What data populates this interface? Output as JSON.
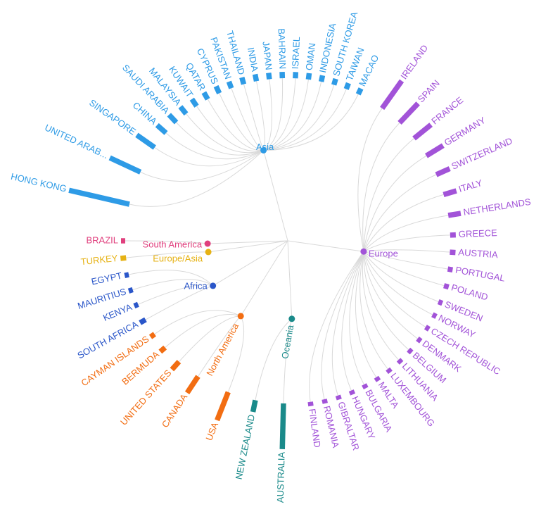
{
  "chart_data": {
    "type": "radial-dendrogram-bar",
    "title": "",
    "regions": [
      {
        "name": "Asia",
        "color": "#2e9be6"
      },
      {
        "name": "Europe",
        "color": "#a253d8"
      },
      {
        "name": "Oceania",
        "color": "#1a8a8a"
      },
      {
        "name": "North America",
        "color": "#f26d12"
      },
      {
        "name": "Africa",
        "color": "#2a56c9"
      },
      {
        "name": "Europe/Asia",
        "color": "#e6b214"
      },
      {
        "name": "South America",
        "color": "#e0407e"
      }
    ],
    "countries": [
      {
        "name": "TAIWAN",
        "region": "Asia",
        "value": 6
      },
      {
        "name": "SOUTH KOREA",
        "region": "Asia",
        "value": 6
      },
      {
        "name": "INDONESIA",
        "region": "Asia",
        "value": 6
      },
      {
        "name": "OMAN",
        "region": "Asia",
        "value": 6
      },
      {
        "name": "ISRAEL",
        "region": "Asia",
        "value": 6
      },
      {
        "name": "BAHRAIN",
        "region": "Asia",
        "value": 6
      },
      {
        "name": "JAPAN",
        "region": "Asia",
        "value": 6
      },
      {
        "name": "INDIA",
        "region": "Asia",
        "value": 7
      },
      {
        "name": "THAILAND",
        "region": "Asia",
        "value": 7
      },
      {
        "name": "PAKISTAN",
        "region": "Asia",
        "value": 7
      },
      {
        "name": "CYPRUS",
        "region": "Asia",
        "value": 8
      },
      {
        "name": "QATAR",
        "region": "Asia",
        "value": 8
      },
      {
        "name": "KUWAIT",
        "region": "Asia",
        "value": 9
      },
      {
        "name": "MALAYSIA",
        "region": "Asia",
        "value": 10
      },
      {
        "name": "SAUDI ARABIA",
        "region": "Asia",
        "value": 12
      },
      {
        "name": "CHINA",
        "region": "Asia",
        "value": 14
      },
      {
        "name": "SINGAPORE",
        "region": "Asia",
        "value": 28
      },
      {
        "name": "UNITED ARAB...",
        "region": "Asia",
        "value": 45
      },
      {
        "name": "HONG KONG",
        "region": "Asia",
        "value": 85
      },
      {
        "name": "BRAZIL",
        "region": "South America",
        "value": 3
      },
      {
        "name": "TURKEY",
        "region": "Europe/Asia",
        "value": 5
      },
      {
        "name": "EGYPT",
        "region": "Africa",
        "value": 3
      },
      {
        "name": "MAURITIUS",
        "region": "Africa",
        "value": 3
      },
      {
        "name": "KENYA",
        "region": "Africa",
        "value": 3
      },
      {
        "name": "SOUTH AFRICA",
        "region": "Africa",
        "value": 6
      },
      {
        "name": "CAYMAN ISLANDS",
        "region": "North America",
        "value": 4
      },
      {
        "name": "BERMUDA",
        "region": "North America",
        "value": 6
      },
      {
        "name": "UNITED STATES",
        "region": "North America",
        "value": 12
      },
      {
        "name": "CANADA",
        "region": "North America",
        "value": 25
      },
      {
        "name": "USA",
        "region": "North America",
        "value": 40
      },
      {
        "name": "NEW ZEALAND",
        "region": "Oceania",
        "value": 14
      },
      {
        "name": "AUSTRALIA",
        "region": "Oceania",
        "value": 62
      },
      {
        "name": "FINLAND",
        "region": "Europe",
        "value": 3
      },
      {
        "name": "ROMANIA",
        "region": "Europe",
        "value": 3
      },
      {
        "name": "GIBRALTAR",
        "region": "Europe",
        "value": 3
      },
      {
        "name": "HUNGARY",
        "region": "Europe",
        "value": 3
      },
      {
        "name": "BULGARIA",
        "region": "Europe",
        "value": 3
      },
      {
        "name": "MALTA",
        "region": "Europe",
        "value": 3
      },
      {
        "name": "LUXEMBOURG",
        "region": "Europe",
        "value": 3
      },
      {
        "name": "LITHUANIA",
        "region": "Europe",
        "value": 3
      },
      {
        "name": "BELGIUM",
        "region": "Europe",
        "value": 3
      },
      {
        "name": "DENMARK",
        "region": "Europe",
        "value": 3
      },
      {
        "name": "CZECH REPUBLIC",
        "region": "Europe",
        "value": 3
      },
      {
        "name": "NORWAY",
        "region": "Europe",
        "value": 3
      },
      {
        "name": "SWEDEN",
        "region": "Europe",
        "value": 3
      },
      {
        "name": "POLAND",
        "region": "Europe",
        "value": 4
      },
      {
        "name": "PORTUGAL",
        "region": "Europe",
        "value": 4
      },
      {
        "name": "AUSTRIA",
        "region": "Europe",
        "value": 5
      },
      {
        "name": "GREECE",
        "region": "Europe",
        "value": 5
      },
      {
        "name": "NETHERLANDS",
        "region": "Europe",
        "value": 15
      },
      {
        "name": "ITALY",
        "region": "Europe",
        "value": 16
      },
      {
        "name": "SWITZERLAND",
        "region": "Europe",
        "value": 18
      },
      {
        "name": "GERMANY",
        "region": "Europe",
        "value": 25
      },
      {
        "name": "FRANCE",
        "region": "Europe",
        "value": 28
      },
      {
        "name": "SPAIN",
        "region": "Europe",
        "value": 35
      },
      {
        "name": "IRELAND",
        "region": "Europe",
        "value": 45
      },
      {
        "name": "MACAO",
        "region": "Asia",
        "value": 6
      }
    ]
  }
}
